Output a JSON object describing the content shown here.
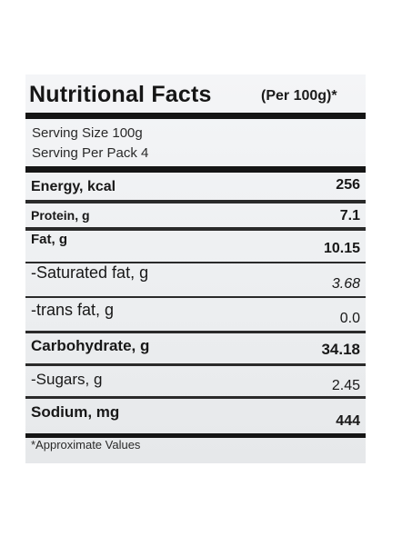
{
  "label": {
    "title": "Nutritional Facts",
    "title_suffix": "(Per 100g)*",
    "serving_size": "Serving Size 100g",
    "serving_per_pack": "Serving Per Pack 4",
    "rows": [
      {
        "name": "Energy, kcal",
        "value": "256"
      },
      {
        "name": "Protein, g",
        "value": "7.1"
      },
      {
        "name": "Fat, g",
        "value": "10.15"
      },
      {
        "name": "-Saturated fat, g",
        "value": "3.68"
      },
      {
        "name": "-trans fat, g",
        "value": "0.0"
      },
      {
        "name": "Carbohydrate, g",
        "value": "34.18"
      },
      {
        "name": "-Sugars, g",
        "value": "2.45"
      },
      {
        "name": "Sodium, mg",
        "value": "444"
      }
    ],
    "footnote": "*Approximate Values"
  }
}
